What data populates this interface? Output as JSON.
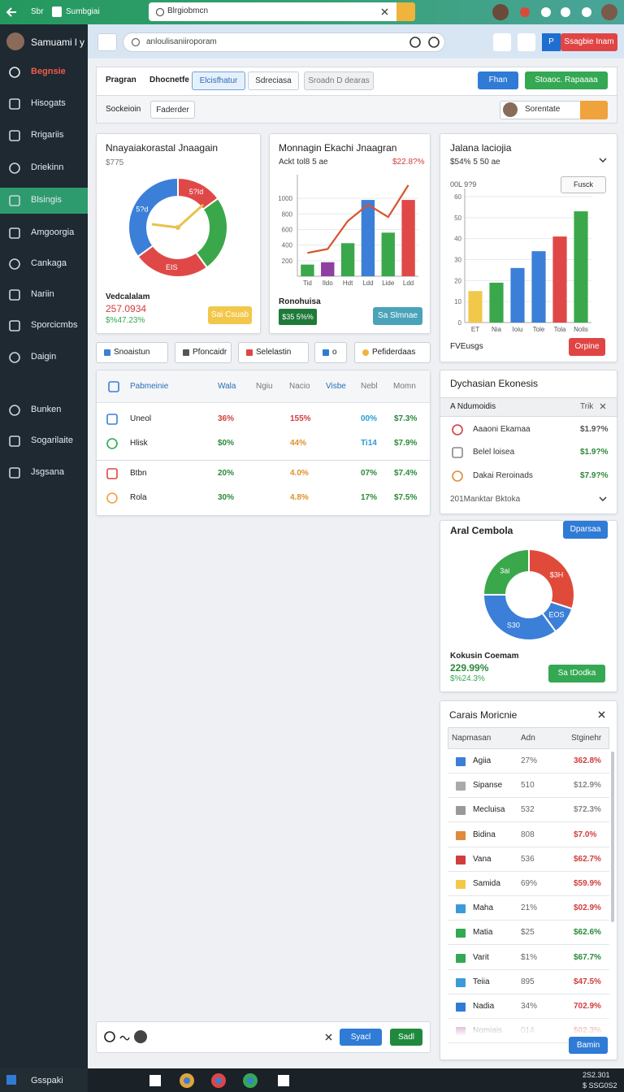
{
  "top_bar": {
    "tab_left": "Sbr",
    "tab": "Sumbgiai",
    "address": "Blrgiobmcn"
  },
  "sidebar": {
    "user": "Samuami l y",
    "items": [
      "Begnsie",
      "Hisogats",
      "Rrigariis",
      "Driekinn",
      "Blsingis",
      "Amgoorgia",
      "Cankaga",
      "Nariin",
      "Sporcicmbs",
      "Daigin"
    ],
    "items_lower": [
      "Bunken",
      "Sogarilaite",
      "Jsgsana"
    ]
  },
  "header": {
    "search": "anloulisaniiroporam",
    "flag": "P",
    "button": "Ssagbie Inam"
  },
  "toolbar": {
    "tabs": [
      "Pragran",
      "Dhocnetfe",
      "Elcisfhatur",
      "Sdreciasa",
      "Sroadn D dearas"
    ],
    "buttons": [
      "Fhan",
      "Stoaoc.  Rapaaaa"
    ],
    "filter_label": "Sockeioin",
    "filter": "Faderder",
    "user": "Sorentate"
  },
  "card_gauge": {
    "title": "Nnayaiakorastal Jnaagain",
    "subtitle": "$775",
    "chart": {
      "type": "pie",
      "values": [
        15,
        25,
        25,
        35
      ],
      "colors": [
        "#e04848",
        "#3aa84a",
        "#e04848",
        "#3b7fd8"
      ],
      "labels": [
        "5?Id",
        null,
        "EIS",
        "5?d"
      ]
    },
    "label": "Vedcalalam",
    "value": "257.0934",
    "change": "$%47.23%",
    "button": "Sai Csuab"
  },
  "card_trend": {
    "title": "Monnagin Ekachi Jnaagran",
    "subtitle": "Ackt tol8 5 ae",
    "change": "$22.8?%",
    "chart": {
      "type": "bar",
      "categories": [
        "Tid",
        "Ildo",
        "Hdt",
        "Ldd",
        "Lide",
        "Ldd"
      ],
      "series": [
        {
          "type": "bar",
          "colors": [
            "#3aa84a",
            "#8e3fa0",
            "#3aa84a",
            "#3b7fd8",
            "#3aa84a",
            "#e04848"
          ],
          "values": [
            150,
            180,
            425,
            980,
            560,
            980
          ]
        },
        {
          "type": "line",
          "color": "#d9532c",
          "values": [
            300,
            350,
            710,
            920,
            760,
            1170
          ]
        }
      ],
      "ylim": [
        0,
        1200
      ],
      "yticks": [
        200,
        400,
        600,
        800,
        1000
      ]
    },
    "label": "Ronohuisa",
    "badge": "$35 5%%",
    "button": "Sa Slmnae"
  },
  "card_bars": {
    "title": "Jalana laciojia",
    "subtitle": "$54% 5 50 ae",
    "note": "00L 9?9",
    "button": "Fusck",
    "chart": {
      "type": "bar",
      "categories": [
        "ET",
        "Nia",
        "Ioiu",
        "Tole",
        "Tola",
        "Nolis"
      ],
      "colors": [
        "#f2c84b",
        "#3aa84a",
        "#3b7fd8",
        "#3b7fd8",
        "#e04848",
        "#3aa84a"
      ],
      "values": [
        15,
        19,
        26,
        34,
        41,
        53
      ],
      "ylim": [
        0,
        60
      ],
      "yticks": [
        0,
        10,
        20,
        30,
        40,
        50,
        60
      ]
    },
    "label": "FVEusgs",
    "action": "Orpine"
  },
  "actions": [
    "Snoaistun",
    "Pfoncaidr",
    "Selelastin",
    "o",
    "Pefiderdaas"
  ],
  "table": {
    "columns": [
      "Pabmeinie",
      "Wala",
      "Ngiu",
      "Nacio",
      "Visbe",
      "Nebl",
      "Momn"
    ],
    "rows": [
      [
        "Uneol",
        "36%",
        "155%",
        "00%",
        "$7.3%"
      ],
      [
        "Hlisk",
        "$0%",
        "44%",
        "Ti14",
        "$7.9%"
      ],
      [
        "Btbn",
        "20%",
        "4.0%",
        "07%",
        "$7.4%"
      ],
      [
        "Rola",
        "30%",
        "4.8%",
        "17%",
        "$7.5%"
      ]
    ]
  },
  "ekonesis": {
    "title": "Dychasian Ekonesis",
    "header": [
      "A Ndumoidis",
      "Trik"
    ],
    "rows": [
      [
        "Aaaoni Ekamaa",
        "$1.9?%"
      ],
      [
        "Belel loisea",
        "$1.9?%"
      ],
      [
        "Dakai Reroinads",
        "$7.9?%"
      ]
    ],
    "footer": "201Manktar Bktoka"
  },
  "aral": {
    "title": "Aral Cembola",
    "button": "Dparsaa",
    "chart": {
      "type": "pie",
      "values": [
        30,
        10,
        35,
        25
      ],
      "colors": [
        "#e04a3a",
        "#3b7fd8",
        "#3b7fd8",
        "#3aa84a"
      ],
      "labels": [
        "$3H",
        "EOS",
        "S30",
        "3ai"
      ]
    },
    "label": "Kokusin Coemam",
    "value": "229.99%",
    "change": "$%24.3%",
    "button2": "Sa tDodka"
  },
  "carais": {
    "title": "Carais Moricnie",
    "columns": [
      "Napmasan",
      "Adn",
      "Stginehr"
    ],
    "rows": [
      [
        "Agiia",
        "27%",
        "362.8%"
      ],
      [
        "Sipanse",
        "510",
        "$12.9%"
      ],
      [
        "Mecluisa",
        "532",
        "$72.3%"
      ],
      [
        "Bidina",
        "808",
        "$7.0%"
      ],
      [
        "Vana",
        "536",
        "$62.7%"
      ],
      [
        "Samida",
        "69%",
        "$59.9%"
      ],
      [
        "Maha",
        "21%",
        "$02.9%"
      ],
      [
        "Matia",
        "$25",
        "$62.6%"
      ],
      [
        "Varit",
        "$1%",
        "$67.7%"
      ],
      [
        "Teiia",
        "895",
        "$47.5%"
      ],
      [
        "Nadia",
        "34%",
        "702.9%"
      ],
      [
        "Nomiais",
        "014",
        "$02.3%"
      ]
    ],
    "button": "Bamin"
  },
  "composer": {
    "buttons": [
      "Syacl",
      "Sadl"
    ]
  },
  "taskbar": {
    "start": "Gsspaki",
    "time": "2S2.301",
    "date": "$ SSG0S2"
  }
}
